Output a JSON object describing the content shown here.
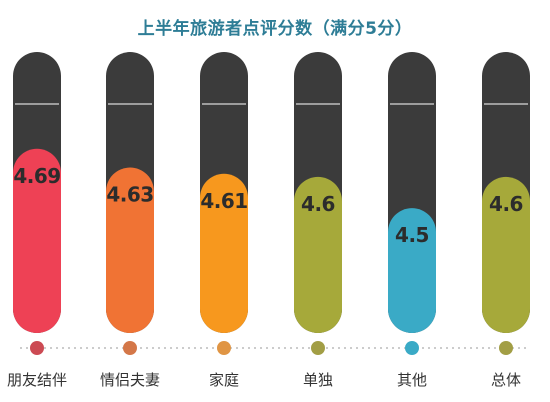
{
  "chart_data": {
    "type": "bar",
    "title": "上半年旅游者点评分数（满分5分）",
    "categories": [
      "朋友结伴",
      "情侣夫妻",
      "家庭",
      "单独",
      "其他",
      "总体"
    ],
    "values": [
      4.69,
      4.63,
      4.61,
      4.6,
      4.5,
      4.6
    ],
    "value_labels": [
      "4.69",
      "4.63",
      "4.61",
      "4.6",
      "4.5",
      "4.6"
    ],
    "ylim": [
      4.1,
      5.0
    ],
    "grid": false,
    "legend": "none",
    "colors": {
      "track": "#3b3b3b",
      "divider": "#ffffff",
      "axis_dots": "#bbbbbb",
      "title": "#2e7d96",
      "bars": [
        "#ee4155",
        "#f07334",
        "#f7981e",
        "#a6a93a",
        "#3aaac6",
        "#a6a93a"
      ],
      "markers": [
        "#cc4a53",
        "#d47748",
        "#e09544",
        "#a29e45",
        "#3aaac6",
        "#a29e45"
      ]
    }
  }
}
